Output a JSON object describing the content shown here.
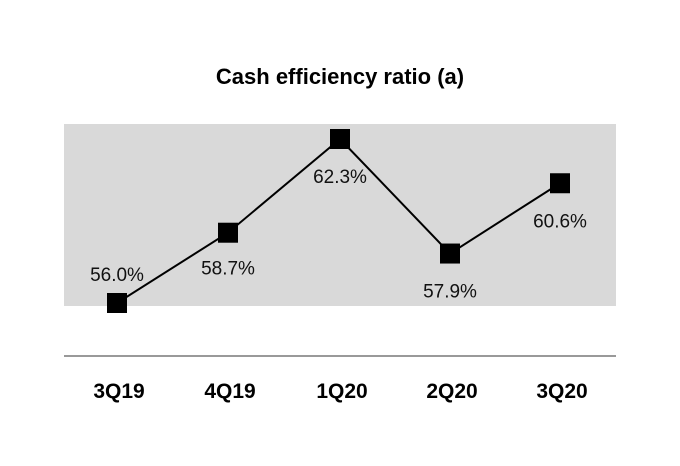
{
  "chart_data": {
    "type": "line",
    "title": "Cash efficiency ratio (a)",
    "categories": [
      "3Q19",
      "4Q19",
      "1Q20",
      "2Q20",
      "3Q20"
    ],
    "series": [
      {
        "name": "Cash efficiency ratio",
        "values": [
          56.0,
          58.7,
          62.3,
          57.9,
          60.6
        ],
        "labels": [
          "56.0%",
          "58.7%",
          "62.3%",
          "57.9%",
          "60.6%"
        ]
      }
    ],
    "ylim": [
      55.0,
      62.5
    ],
    "marker": "square",
    "colors": {
      "line": "#000000",
      "marker": "#000000",
      "band": "#d9d9d9",
      "axis": "#999999"
    },
    "xlabel": "",
    "ylabel": "",
    "grid": false,
    "legend": "none"
  }
}
